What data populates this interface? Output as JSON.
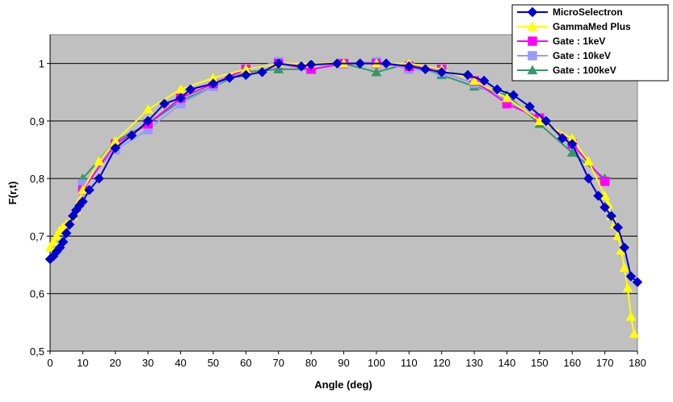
{
  "chart_data": {
    "type": "line",
    "xlabel": "Angle (deg)",
    "ylabel": "F(r,t)",
    "xlim": [
      0,
      180
    ],
    "ylim": [
      0.5,
      1.05
    ],
    "x_ticks": [
      "0",
      "10",
      "20",
      "30",
      "40",
      "50",
      "60",
      "70",
      "80",
      "90",
      "100",
      "110",
      "120",
      "130",
      "140",
      "150",
      "160",
      "170",
      "180"
    ],
    "y_ticks": [
      "0,5",
      "0,6",
      "0,7",
      "0,8",
      "0,9",
      "1"
    ],
    "grid": true,
    "legend_position": "top-right",
    "plot_background": "#c0c0c0",
    "series": [
      {
        "name": "MicroSelectron",
        "color": "#0000cc",
        "marker": "diamond",
        "x": [
          0,
          1,
          2,
          3,
          4,
          5,
          6,
          7,
          8,
          9,
          10,
          12,
          15,
          20,
          25,
          30,
          35,
          40,
          43,
          50,
          55,
          60,
          65,
          70,
          77,
          80,
          88,
          95,
          103,
          110,
          115,
          120,
          128,
          133,
          137,
          142,
          147,
          152,
          157,
          160,
          165,
          168,
          170,
          172,
          174,
          176,
          178,
          180
        ],
        "y": [
          0.66,
          0.665,
          0.673,
          0.68,
          0.69,
          0.705,
          0.72,
          0.735,
          0.745,
          0.753,
          0.76,
          0.78,
          0.8,
          0.853,
          0.875,
          0.9,
          0.93,
          0.94,
          0.955,
          0.965,
          0.975,
          0.98,
          0.985,
          1.0,
          0.995,
          0.998,
          1.0,
          1.0,
          1.0,
          0.995,
          0.99,
          0.985,
          0.98,
          0.97,
          0.955,
          0.945,
          0.925,
          0.9,
          0.87,
          0.86,
          0.8,
          0.77,
          0.75,
          0.735,
          0.715,
          0.68,
          0.63,
          0.62
        ]
      },
      {
        "name": "GammaMed Plus",
        "color": "#ffff00",
        "marker": "triangle",
        "x": [
          0,
          1,
          2,
          3,
          4,
          5,
          6,
          7,
          8,
          9,
          10,
          15,
          20,
          30,
          40,
          50,
          60,
          70,
          80,
          90,
          100,
          110,
          120,
          130,
          140,
          150,
          160,
          165,
          170,
          171,
          172,
          173,
          174,
          175,
          176,
          177,
          178,
          179
        ],
        "y": [
          0.68,
          0.69,
          0.7,
          0.71,
          0.715,
          0.72,
          0.725,
          0.735,
          0.745,
          0.76,
          0.78,
          0.83,
          0.865,
          0.92,
          0.955,
          0.975,
          0.99,
          1.0,
          1.0,
          1.0,
          1.0,
          1.0,
          0.99,
          0.97,
          0.94,
          0.9,
          0.87,
          0.83,
          0.77,
          0.755,
          0.735,
          0.72,
          0.7,
          0.675,
          0.645,
          0.61,
          0.56,
          0.53
        ]
      },
      {
        "name": "Gate : 1keV",
        "color": "#ff00ff",
        "marker": "square",
        "x": [
          10,
          20,
          30,
          40,
          50,
          60,
          70,
          80,
          90,
          100,
          110,
          120,
          130,
          140,
          150,
          160,
          170
        ],
        "y": [
          0.78,
          0.86,
          0.895,
          0.94,
          0.965,
          0.99,
          1.0,
          0.99,
          1.0,
          1.0,
          0.995,
          0.99,
          0.97,
          0.93,
          0.905,
          0.86,
          0.795
        ]
      },
      {
        "name": "Gate : 10keV",
        "color": "#9999ff",
        "marker": "square",
        "x": [
          10,
          20,
          30,
          40,
          50,
          60,
          70,
          80,
          90,
          100,
          110,
          120,
          130,
          140,
          150,
          160,
          170
        ],
        "y": [
          0.79,
          0.85,
          0.885,
          0.93,
          0.96,
          0.99,
          1.003,
          0.99,
          1.0,
          1.003,
          0.99,
          0.985,
          0.965,
          0.935,
          0.905,
          0.86,
          0.795
        ]
      },
      {
        "name": "Gate : 100keV",
        "color": "#339966",
        "marker": "triangle",
        "x": [
          10,
          20,
          30,
          40,
          50,
          60,
          70,
          80,
          90,
          100,
          110,
          120,
          130,
          140,
          150,
          160,
          170
        ],
        "y": [
          0.8,
          0.865,
          0.895,
          0.935,
          0.96,
          0.985,
          0.99,
          0.99,
          1.0,
          0.985,
          1.0,
          0.98,
          0.96,
          0.945,
          0.895,
          0.845,
          0.8
        ]
      }
    ]
  }
}
